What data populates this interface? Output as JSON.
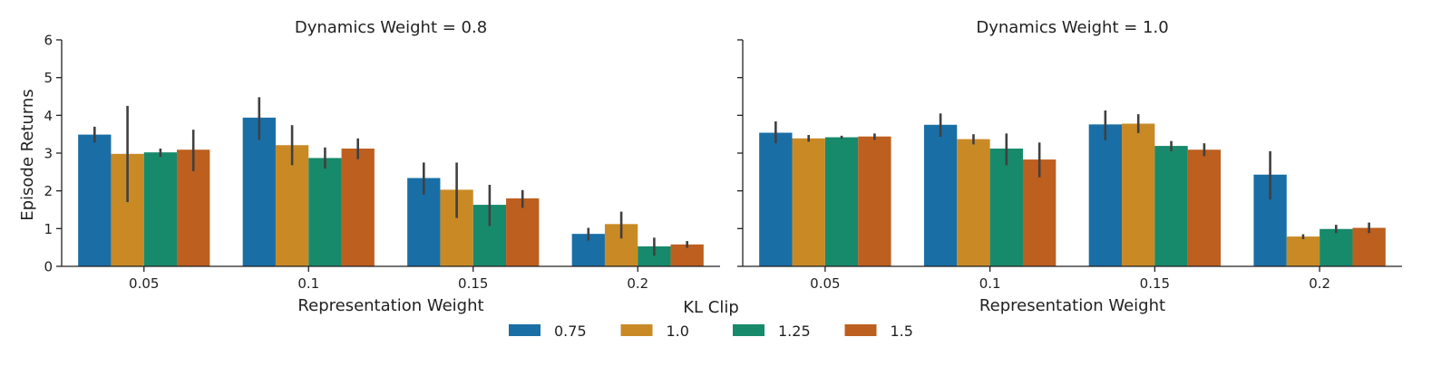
{
  "chart_data": {
    "type": "bar",
    "ylabel": "Episode Returns",
    "ylim": [
      0,
      6
    ],
    "yticks": [
      "0",
      "1",
      "2",
      "3",
      "4",
      "5",
      "6"
    ],
    "legend": {
      "title": "KL Clip",
      "placement": "bottom-center",
      "entries": [
        "0.75",
        "1.0",
        "1.25",
        "1.5"
      ]
    },
    "colors": [
      "#1a6ea6",
      "#c98a26",
      "#178a6b",
      "#bd5f1f"
    ],
    "error_bar_color": "#404040",
    "grid": false,
    "panels": [
      {
        "title": "Dynamics Weight = 0.8",
        "xlabel": "Representation Weight",
        "categories": [
          "0.05",
          "0.1",
          "0.15",
          "0.2"
        ],
        "series": [
          {
            "name": "0.75",
            "values": [
              3.49,
              3.94,
              2.34,
              0.86
            ],
            "ci": [
              [
                3.28,
                3.7
              ],
              [
                3.35,
                4.48
              ],
              [
                1.9,
                2.75
              ],
              [
                0.68,
                1.02
              ]
            ]
          },
          {
            "name": "1.0",
            "values": [
              2.98,
              3.21,
              2.03,
              1.12
            ],
            "ci": [
              [
                1.7,
                4.25
              ],
              [
                2.68,
                3.74
              ],
              [
                1.28,
                2.75
              ],
              [
                0.74,
                1.45
              ]
            ]
          },
          {
            "name": "1.25",
            "values": [
              3.02,
              2.87,
              1.63,
              0.53
            ],
            "ci": [
              [
                2.9,
                3.12
              ],
              [
                2.59,
                3.15
              ],
              [
                1.07,
                2.16
              ],
              [
                0.28,
                0.76
              ]
            ]
          },
          {
            "name": "1.5",
            "values": [
              3.09,
              3.12,
              1.8,
              0.58
            ],
            "ci": [
              [
                2.52,
                3.62
              ],
              [
                2.84,
                3.39
              ],
              [
                1.55,
                2.02
              ],
              [
                0.49,
                0.67
              ]
            ]
          }
        ]
      },
      {
        "title": "Dynamics Weight = 1.0",
        "xlabel": "Representation Weight",
        "categories": [
          "0.05",
          "0.1",
          "0.15",
          "0.2"
        ],
        "series": [
          {
            "name": "0.75",
            "values": [
              3.54,
              3.75,
              3.76,
              2.43
            ],
            "ci": [
              [
                3.26,
                3.84
              ],
              [
                3.43,
                4.05
              ],
              [
                3.34,
                4.13
              ],
              [
                1.77,
                3.05
              ]
            ]
          },
          {
            "name": "1.0",
            "values": [
              3.39,
              3.37,
              3.78,
              0.79
            ],
            "ci": [
              [
                3.3,
                3.48
              ],
              [
                3.23,
                3.5
              ],
              [
                3.53,
                4.03
              ],
              [
                0.72,
                0.85
              ]
            ]
          },
          {
            "name": "1.25",
            "values": [
              3.42,
              3.12,
              3.19,
              0.99
            ],
            "ci": [
              [
                3.38,
                3.46
              ],
              [
                2.68,
                3.52
              ],
              [
                3.05,
                3.32
              ],
              [
                0.88,
                1.1
              ]
            ]
          },
          {
            "name": "1.5",
            "values": [
              3.44,
              2.83,
              3.09,
              1.02
            ],
            "ci": [
              [
                3.35,
                3.52
              ],
              [
                2.36,
                3.28
              ],
              [
                2.92,
                3.26
              ],
              [
                0.88,
                1.16
              ]
            ]
          }
        ]
      }
    ]
  }
}
